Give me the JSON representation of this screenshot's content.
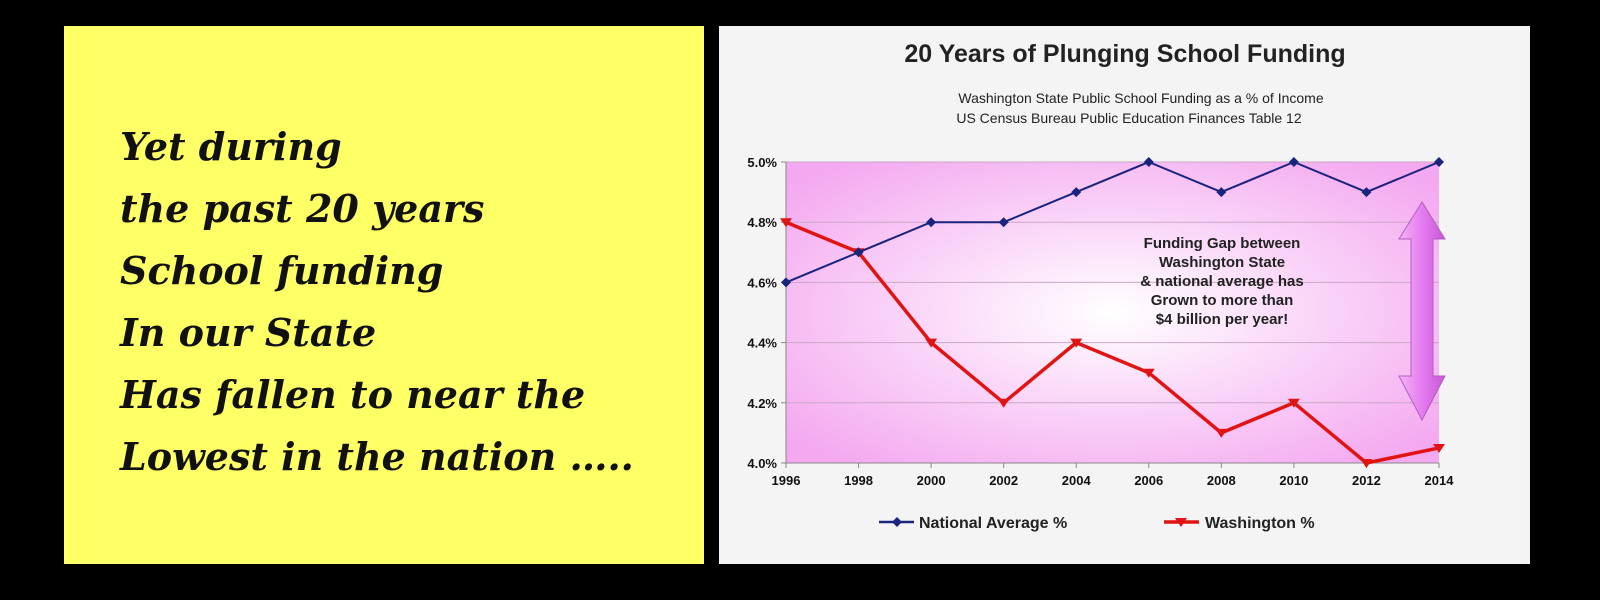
{
  "left_panel": {
    "lines": [
      "Yet during",
      "the past 20 years",
      "School funding",
      "In our State",
      "Has fallen to near the",
      "Lowest in the nation ….."
    ],
    "background": "#ffff66"
  },
  "chart_data": {
    "type": "line",
    "title": "20 Years of Plunging School Funding",
    "subtitle": [
      "Washington State Public School Funding as a % of Income",
      "US Census Bureau Public Education Finances Table 12"
    ],
    "x": [
      1996,
      1998,
      2000,
      2002,
      2004,
      2006,
      2008,
      2010,
      2012,
      2014
    ],
    "x_tick_labels": [
      "1996",
      "1998",
      "2000",
      "2002",
      "2004",
      "2006",
      "2008",
      "2010",
      "2012",
      "2014"
    ],
    "ylim": [
      4.0,
      5.0
    ],
    "y_ticks": [
      4.0,
      4.2,
      4.4,
      4.6,
      4.8,
      5.0
    ],
    "y_tick_labels": [
      "4.0%",
      "4.2%",
      "4.4%",
      "4.6%",
      "4.8%",
      "5.0%"
    ],
    "grid": true,
    "legend_position": "bottom",
    "series": [
      {
        "name": "National Average %",
        "color": "#1a237e",
        "marker": "diamond",
        "values": [
          4.6,
          4.7,
          4.8,
          4.8,
          4.9,
          5.0,
          4.9,
          5.0,
          4.9,
          5.0
        ]
      },
      {
        "name": "Washington %",
        "color": "#e11414",
        "marker": "triangle-down",
        "values": [
          4.8,
          4.7,
          4.4,
          4.2,
          4.4,
          4.3,
          4.1,
          4.2,
          4.0,
          4.05
        ]
      }
    ],
    "annotation": {
      "lines": [
        "Funding Gap between",
        "Washington State",
        "& national average has",
        "Grown to more than",
        "$4 billion per year!"
      ],
      "arrow": "double-headed vertical",
      "arrow_color": "#e880f0"
    },
    "plot_background": "#f9bdf6"
  }
}
